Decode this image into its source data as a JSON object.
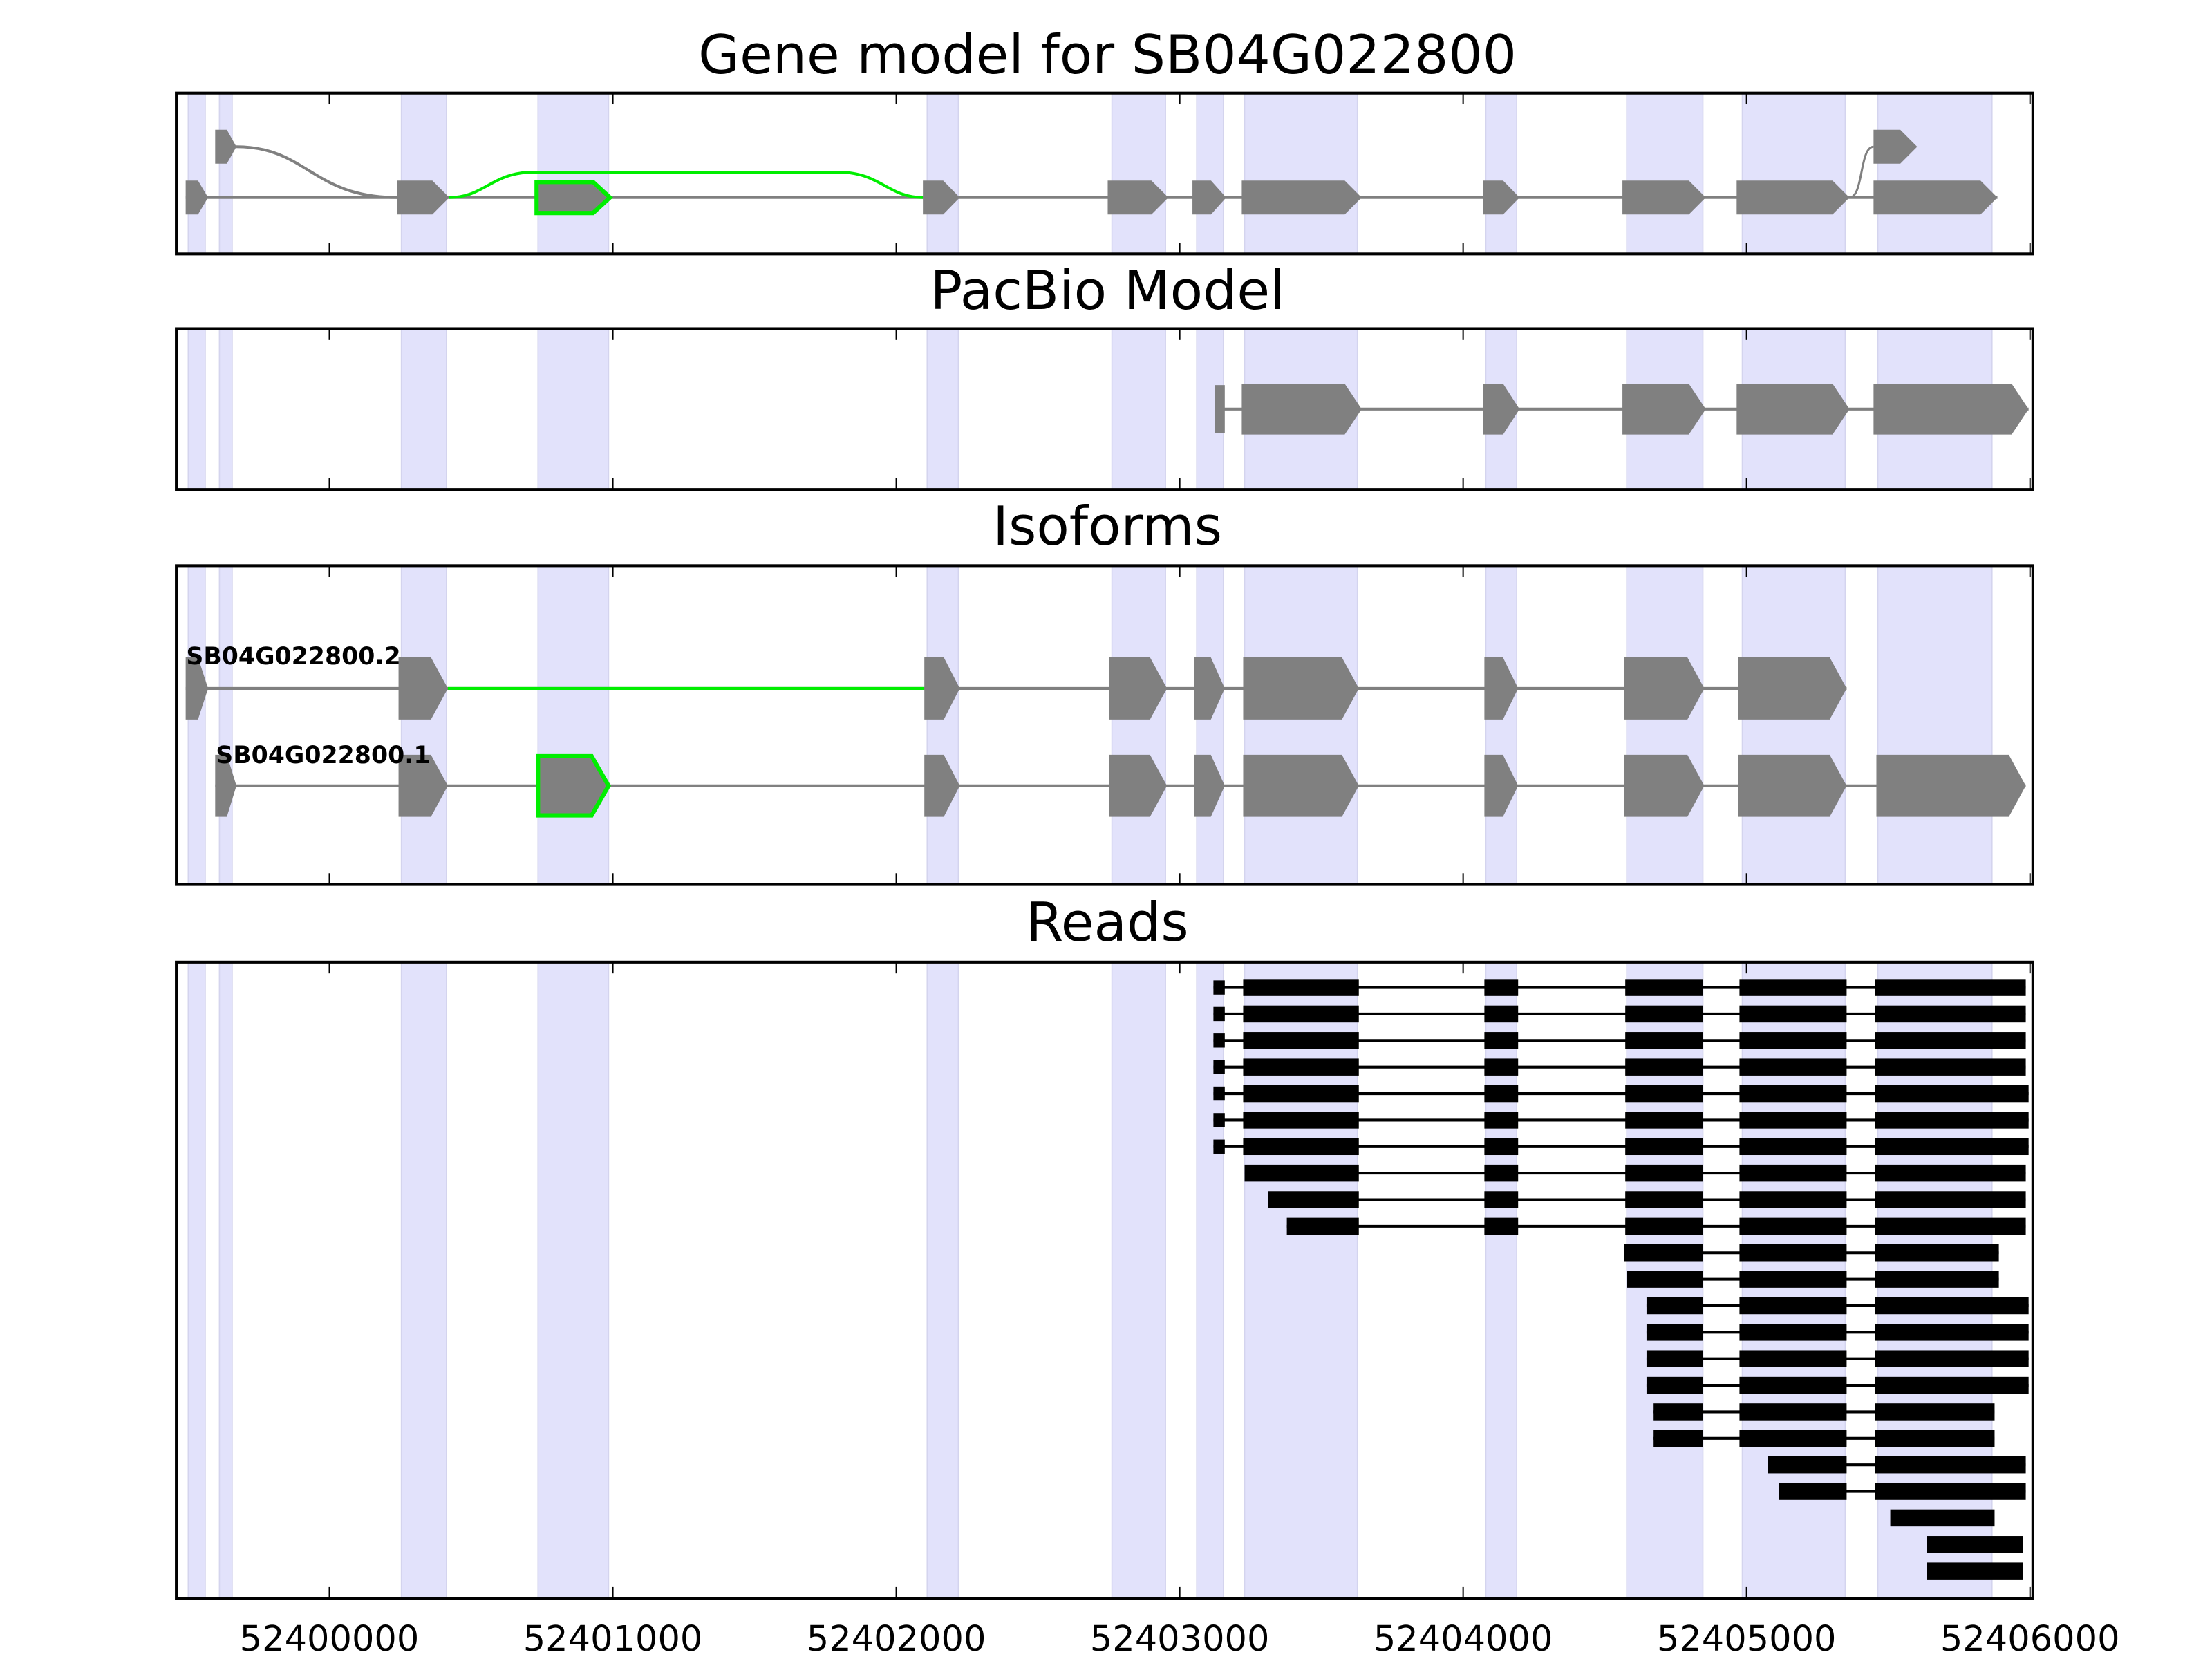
{
  "chart_data": {
    "type": "gene-model",
    "xlim": [
      52399460,
      52406010
    ],
    "xticks": [
      52400000,
      52401000,
      52402000,
      52403000,
      52404000,
      52405000,
      52406000
    ],
    "xtick_labels": [
      "52400000",
      "52401000",
      "52402000",
      "52403000",
      "52404000",
      "52405000",
      "52406000"
    ],
    "colors": {
      "shade": "#e2e2fb",
      "exon": "#808080",
      "highlight": "#00ee00",
      "read": "#000000"
    },
    "shaded_regions": [
      [
        52399502,
        52399562
      ],
      [
        52399612,
        52399657
      ],
      [
        52400254,
        52400413
      ],
      [
        52400736,
        52400985
      ],
      [
        52402109,
        52402219
      ],
      [
        52402761,
        52402950
      ],
      [
        52403060,
        52403154
      ],
      [
        52403229,
        52403627
      ],
      [
        52404080,
        52404189
      ],
      [
        52404577,
        52404846
      ],
      [
        52404985,
        52405348
      ],
      [
        52405463,
        52405866
      ]
    ],
    "panels": [
      {
        "title": "Gene model for SB04G022800",
        "main_exons": [
          [
            52399493,
            52399572
          ],
          [
            52400239,
            52400423
          ],
          [
            52402094,
            52402224
          ],
          [
            52402746,
            52402960
          ],
          [
            52403045,
            52403164
          ],
          [
            52403219,
            52403642
          ],
          [
            52404070,
            52404199
          ],
          [
            52404562,
            52404856
          ],
          [
            52404965,
            52405363
          ],
          [
            52405448,
            52405885
          ]
        ],
        "highlight_exon": [
          52400731,
          52400990
        ],
        "upper_exons": [
          [
            52399597,
            52399672
          ],
          [
            52405448,
            52405602
          ]
        ],
        "highlight_junction": [
          52400423,
          52402094
        ]
      },
      {
        "title": "PacBio Model",
        "exons": [
          [
            52403124,
            52403159
          ],
          [
            52403219,
            52403642
          ],
          [
            52404070,
            52404199
          ],
          [
            52404562,
            52404856
          ],
          [
            52404965,
            52405363
          ],
          [
            52405448,
            52405995
          ]
        ]
      },
      {
        "title": "Isoforms",
        "isoforms": [
          {
            "name": "SB04G022800.2",
            "exons": [
              [
                52399493,
                52399572
              ],
              [
                52400244,
                52400418
              ],
              [
                52402099,
                52402224
              ],
              [
                52402751,
                52402955
              ],
              [
                52403050,
                52403159
              ],
              [
                52403224,
                52403632
              ],
              [
                52404075,
                52404194
              ],
              [
                52404567,
                52404851
              ],
              [
                52404970,
                52405353
              ]
            ],
            "highlight_intron": [
              52400418,
              52402099
            ]
          },
          {
            "name": "SB04G022800.1",
            "exons": [
              [
                52399597,
                52399672
              ],
              [
                52400244,
                52400418
              ],
              [
                52402099,
                52402224
              ],
              [
                52402751,
                52402955
              ],
              [
                52403050,
                52403159
              ],
              [
                52403224,
                52403632
              ],
              [
                52404075,
                52404194
              ],
              [
                52404567,
                52404851
              ],
              [
                52404970,
                52405353
              ],
              [
                52405458,
                52405985
              ]
            ],
            "highlight_exon": [
              52400736,
              52400985
            ]
          }
        ]
      },
      {
        "title": "Reads",
        "reads": [
          [
            [
              52403119,
              52403159
            ],
            [
              52403224,
              52403632
            ],
            [
              52404075,
              52404194
            ],
            [
              52404572,
              52404846
            ],
            [
              52404975,
              52405353
            ],
            [
              52405453,
              52405985
            ]
          ],
          [
            [
              52403119,
              52403159
            ],
            [
              52403224,
              52403632
            ],
            [
              52404075,
              52404194
            ],
            [
              52404572,
              52404846
            ],
            [
              52404975,
              52405353
            ],
            [
              52405453,
              52405985
            ]
          ],
          [
            [
              52403119,
              52403159
            ],
            [
              52403224,
              52403632
            ],
            [
              52404075,
              52404194
            ],
            [
              52404572,
              52404846
            ],
            [
              52404975,
              52405353
            ],
            [
              52405453,
              52405985
            ]
          ],
          [
            [
              52403119,
              52403159
            ],
            [
              52403224,
              52403632
            ],
            [
              52404075,
              52404194
            ],
            [
              52404572,
              52404846
            ],
            [
              52404975,
              52405353
            ],
            [
              52405453,
              52405985
            ]
          ],
          [
            [
              52403119,
              52403159
            ],
            [
              52403224,
              52403632
            ],
            [
              52404075,
              52404194
            ],
            [
              52404572,
              52404846
            ],
            [
              52404975,
              52405353
            ],
            [
              52405453,
              52405995
            ]
          ],
          [
            [
              52403119,
              52403159
            ],
            [
              52403224,
              52403632
            ],
            [
              52404075,
              52404194
            ],
            [
              52404572,
              52404846
            ],
            [
              52404975,
              52405353
            ],
            [
              52405453,
              52405995
            ]
          ],
          [
            [
              52403119,
              52403159
            ],
            [
              52403224,
              52403632
            ],
            [
              52404075,
              52404194
            ],
            [
              52404572,
              52404846
            ],
            [
              52404975,
              52405353
            ],
            [
              52405453,
              52405995
            ]
          ],
          [
            [
              52403229,
              52403632
            ],
            [
              52404075,
              52404194
            ],
            [
              52404572,
              52404846
            ],
            [
              52404975,
              52405353
            ],
            [
              52405453,
              52405985
            ]
          ],
          [
            [
              52403313,
              52403632
            ],
            [
              52404075,
              52404194
            ],
            [
              52404572,
              52404846
            ],
            [
              52404975,
              52405353
            ],
            [
              52405453,
              52405985
            ]
          ],
          [
            [
              52403378,
              52403632
            ],
            [
              52404075,
              52404194
            ],
            [
              52404572,
              52404846
            ],
            [
              52404975,
              52405353
            ],
            [
              52405453,
              52405985
            ]
          ],
          [
            [
              52404567,
              52404846
            ],
            [
              52404975,
              52405353
            ],
            [
              52405453,
              52405890
            ]
          ],
          [
            [
              52404577,
              52404846
            ],
            [
              52404975,
              52405353
            ],
            [
              52405453,
              52405890
            ]
          ],
          [
            [
              52404647,
              52404846
            ],
            [
              52404975,
              52405353
            ],
            [
              52405453,
              52405995
            ]
          ],
          [
            [
              52404647,
              52404846
            ],
            [
              52404975,
              52405353
            ],
            [
              52405453,
              52405995
            ]
          ],
          [
            [
              52404647,
              52404846
            ],
            [
              52404975,
              52405353
            ],
            [
              52405453,
              52405995
            ]
          ],
          [
            [
              52404647,
              52404846
            ],
            [
              52404975,
              52405353
            ],
            [
              52405453,
              52405995
            ]
          ],
          [
            [
              52404672,
              52404846
            ],
            [
              52404975,
              52405353
            ],
            [
              52405453,
              52405875
            ]
          ],
          [
            [
              52404672,
              52404846
            ],
            [
              52404975,
              52405353
            ],
            [
              52405453,
              52405875
            ]
          ],
          [
            [
              52405075,
              52405353
            ],
            [
              52405453,
              52405985
            ]
          ],
          [
            [
              52405114,
              52405353
            ],
            [
              52405453,
              52405985
            ]
          ],
          [
            [
              52405507,
              52405875
            ]
          ],
          [
            [
              52405637,
              52405975
            ]
          ],
          [
            [
              52405637,
              52405975
            ]
          ]
        ]
      }
    ]
  }
}
